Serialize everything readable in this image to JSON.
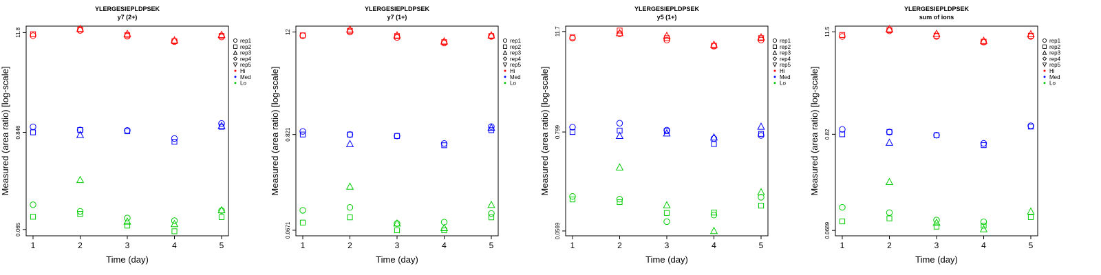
{
  "chart_data": [
    {
      "type": "scatter",
      "title": "YLERGESIEPLDPSEK",
      "subtitle": "y7 (2+)",
      "xlabel": "Time (day)",
      "ylabel": "Measured (area ratio) [log-scale]",
      "x": [
        1,
        2,
        3,
        4,
        5
      ],
      "xticks": [
        "1",
        "2",
        "3",
        "4",
        "5"
      ],
      "yticks": [
        "0.065",
        "0.846",
        "11.8"
      ],
      "ylim": [
        0.055,
        14
      ],
      "legend": [
        "rep1",
        "rep2",
        "rep3",
        "rep4",
        "rep5",
        "Hi",
        "Med",
        "Lo"
      ],
      "series": [
        {
          "group": "Hi",
          "rep": "rep1",
          "values": [
            10.9,
            12.5,
            10.7,
            9.3,
            10.5
          ]
        },
        {
          "group": "Hi",
          "rep": "rep2",
          "values": [
            11.3,
            12.8,
            11.0,
            9.4,
            10.8
          ]
        },
        {
          "group": "Hi",
          "rep": "rep3",
          "values": [
            null,
            13.0,
            11.4,
            9.6,
            11.1
          ]
        },
        {
          "group": "Med",
          "rep": "rep1",
          "values": [
            0.98,
            0.9,
            0.89,
            0.72,
            1.07
          ]
        },
        {
          "group": "Med",
          "rep": "rep2",
          "values": [
            0.846,
            0.9,
            0.87,
            0.66,
            0.98
          ]
        },
        {
          "group": "Med",
          "rep": "rep3",
          "values": [
            null,
            0.79,
            null,
            null,
            1.0
          ]
        },
        {
          "group": "Lo",
          "rep": "rep1",
          "values": [
            0.125,
            0.105,
            0.088,
            0.082,
            0.107
          ]
        },
        {
          "group": "Lo",
          "rep": "rep2",
          "values": [
            0.091,
            0.098,
            0.072,
            0.062,
            0.09
          ]
        },
        {
          "group": "Lo",
          "rep": "rep3",
          "values": [
            null,
            0.24,
            0.08,
            0.075,
            0.108
          ]
        }
      ]
    },
    {
      "type": "scatter",
      "title": "YLERGESIEPLDPSEK",
      "subtitle": "y7 (1+)",
      "xlabel": "Time (day)",
      "ylabel": "Measured (area ratio) [log-scale]",
      "x": [
        1,
        2,
        3,
        4,
        5
      ],
      "xticks": [
        "1",
        "2",
        "3",
        "4",
        "5"
      ],
      "yticks": [
        "0.0671",
        "0.821",
        "12"
      ],
      "ylim": [
        0.058,
        14
      ],
      "legend": [
        "rep1",
        "rep2",
        "rep3",
        "rep4",
        "rep5",
        "Hi",
        "Med",
        "Lo"
      ],
      "series": [
        {
          "group": "Hi",
          "rep": "rep1",
          "values": [
            10.9,
            12.0,
            10.4,
            9.0,
            10.7
          ]
        },
        {
          "group": "Hi",
          "rep": "rep2",
          "values": [
            11.0,
            12.4,
            10.8,
            9.2,
            10.8
          ]
        },
        {
          "group": "Hi",
          "rep": "rep3",
          "values": [
            null,
            12.8,
            11.0,
            9.4,
            11.0
          ]
        },
        {
          "group": "Med",
          "rep": "rep1",
          "values": [
            0.89,
            0.82,
            0.79,
            0.65,
            1.01
          ]
        },
        {
          "group": "Med",
          "rep": "rep2",
          "values": [
            0.821,
            0.82,
            0.79,
            0.62,
            0.92
          ]
        },
        {
          "group": "Med",
          "rep": "rep3",
          "values": [
            null,
            0.64,
            null,
            null,
            0.98
          ]
        },
        {
          "group": "Lo",
          "rep": "rep1",
          "values": [
            0.113,
            0.122,
            0.08,
            0.083,
            0.104
          ]
        },
        {
          "group": "Lo",
          "rep": "rep2",
          "values": [
            0.082,
            0.094,
            0.067,
            0.067,
            0.094
          ]
        },
        {
          "group": "Lo",
          "rep": "rep3",
          "values": [
            null,
            0.21,
            0.08,
            0.071,
            0.13
          ]
        }
      ]
    },
    {
      "type": "scatter",
      "title": "YLERGESIEPLDPSEK",
      "subtitle": "y5 (1+)",
      "xlabel": "Time (day)",
      "ylabel": "Measured (area ratio) [log-scale]",
      "x": [
        1,
        2,
        3,
        4,
        5
      ],
      "xticks": [
        "1",
        "2",
        "3",
        "4",
        "5"
      ],
      "yticks": [
        "0.0569",
        "0.799",
        "11.7"
      ],
      "ylim": [
        0.05,
        13.5
      ],
      "legend": [
        "rep1",
        "rep2",
        "rep3",
        "rep4",
        "rep5",
        "Hi",
        "Med",
        "Lo"
      ],
      "series": [
        {
          "group": "Hi",
          "rep": "rep1",
          "values": [
            9.8,
            11.0,
            9.3,
            7.9,
            9.3
          ]
        },
        {
          "group": "Hi",
          "rep": "rep2",
          "values": [
            10.0,
            12.0,
            9.8,
            8.0,
            9.8
          ]
        },
        {
          "group": "Hi",
          "rep": "rep3",
          "values": [
            null,
            11.2,
            10.4,
            8.2,
            10.0
          ]
        },
        {
          "group": "Med",
          "rep": "rep1",
          "values": [
            0.91,
            1.01,
            0.84,
            0.67,
            0.73
          ]
        },
        {
          "group": "Med",
          "rep": "rep2",
          "values": [
            0.799,
            0.83,
            0.82,
            0.58,
            0.76
          ]
        },
        {
          "group": "Med",
          "rep": "rep3",
          "values": [
            null,
            0.72,
            0.77,
            0.69,
            0.92
          ]
        },
        {
          "group": "Lo",
          "rep": "rep1",
          "values": [
            0.143,
            0.133,
            0.073,
            0.087,
            0.14
          ]
        },
        {
          "group": "Lo",
          "rep": "rep2",
          "values": [
            0.132,
            0.123,
            0.092,
            0.093,
            0.112
          ]
        },
        {
          "group": "Lo",
          "rep": "rep3",
          "values": [
            null,
            0.31,
            0.113,
            0.0569,
            0.16
          ]
        }
      ]
    },
    {
      "type": "scatter",
      "title": "YLERGESIEPLDPSEK",
      "subtitle": "sum of ions",
      "xlabel": "Time (day)",
      "ylabel": "Measured (area ratio) [log-scale]",
      "x": [
        1,
        2,
        3,
        4,
        5
      ],
      "xticks": [
        "1",
        "2",
        "3",
        "4",
        "5"
      ],
      "yticks": [
        "0.0689",
        "0.82",
        "11.5"
      ],
      "ylim": [
        0.06,
        13.3
      ],
      "legend": [
        "rep1",
        "rep2",
        "rep3",
        "rep4",
        "rep5",
        "Hi",
        "Med",
        "Lo"
      ],
      "series": [
        {
          "group": "Hi",
          "rep": "rep1",
          "values": [
            10.2,
            11.8,
            10.2,
            8.8,
            10.2
          ]
        },
        {
          "group": "Hi",
          "rep": "rep2",
          "values": [
            10.6,
            12.0,
            10.4,
            8.9,
            10.4
          ]
        },
        {
          "group": "Hi",
          "rep": "rep3",
          "values": [
            null,
            12.3,
            10.9,
            9.1,
            10.8
          ]
        },
        {
          "group": "Med",
          "rep": "rep1",
          "values": [
            0.93,
            0.87,
            0.8,
            0.65,
            1.02
          ]
        },
        {
          "group": "Med",
          "rep": "rep2",
          "values": [
            0.82,
            0.87,
            0.8,
            0.62,
            1.0
          ]
        },
        {
          "group": "Med",
          "rep": "rep3",
          "values": [
            null,
            0.66,
            null,
            null,
            null
          ]
        },
        {
          "group": "Lo",
          "rep": "rep1",
          "values": [
            0.125,
            0.109,
            0.09,
            0.086,
            null
          ]
        },
        {
          "group": "Lo",
          "rep": "rep2",
          "values": [
            0.087,
            0.094,
            0.076,
            0.078,
            0.097
          ]
        },
        {
          "group": "Lo",
          "rep": "rep3",
          "values": [
            null,
            0.24,
            0.084,
            0.071,
            0.112
          ]
        }
      ]
    }
  ],
  "legend_colors": {
    "Hi": "#ff0000",
    "Med": "#0000ff",
    "Lo": "#00cc00"
  }
}
